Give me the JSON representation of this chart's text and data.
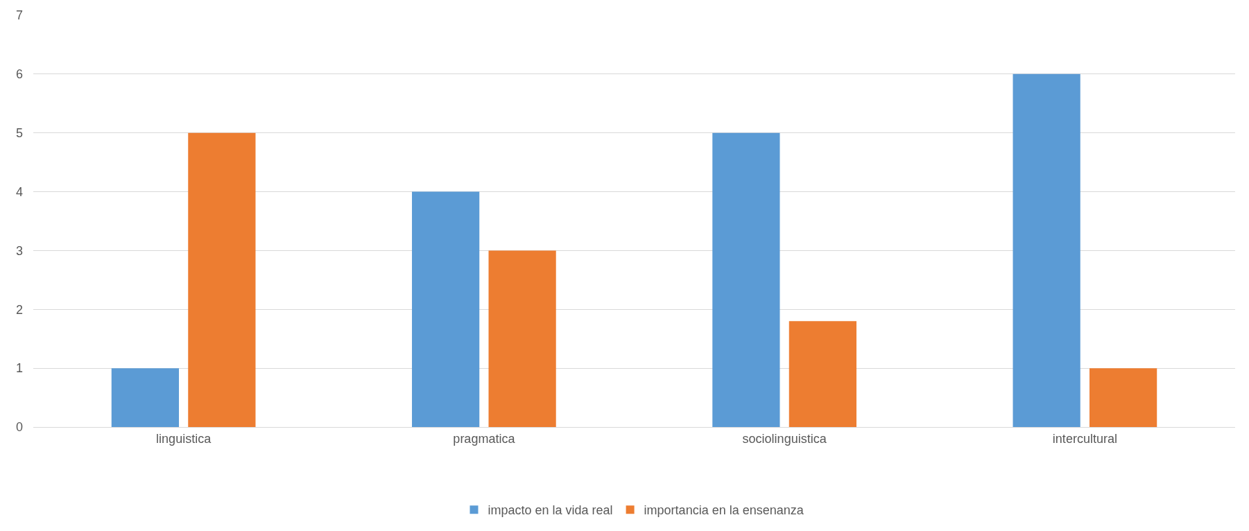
{
  "chart_data": {
    "type": "bar",
    "categories": [
      "linguistica",
      "pragmatica",
      "sociolinguistica",
      "intercultural"
    ],
    "series": [
      {
        "name": "impacto en la vida real",
        "color": "#5b9bd5",
        "values": [
          1,
          4,
          5,
          6
        ]
      },
      {
        "name": "importancia en la ensenanza",
        "color": "#ed7d31",
        "values": [
          5,
          3,
          1.8,
          1
        ]
      }
    ],
    "ylim": [
      0,
      7
    ],
    "yticks": [
      0,
      1,
      2,
      3,
      4,
      5,
      6,
      7
    ],
    "grid": "y",
    "legend": "bottom"
  }
}
